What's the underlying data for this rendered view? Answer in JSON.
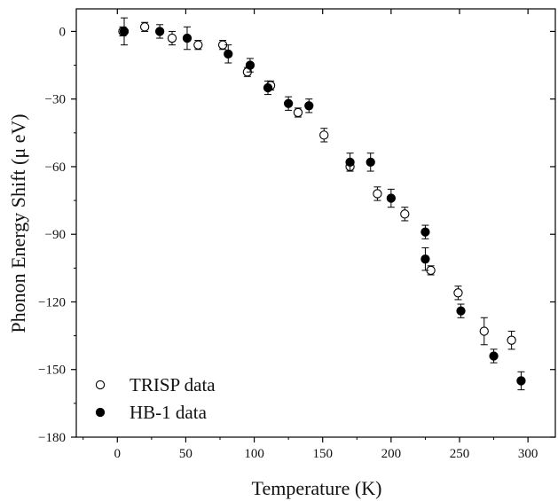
{
  "chart_data": {
    "type": "scatter",
    "title": "",
    "xlabel": "Temperature (K)",
    "ylabel": "Phonon Energy Shift (μ eV)",
    "xlim": [
      -30,
      320
    ],
    "ylim": [
      -180,
      10
    ],
    "xticks": [
      0,
      50,
      100,
      150,
      200,
      250,
      300
    ],
    "yticks": [
      0,
      -30,
      -60,
      -90,
      -120,
      -150,
      -180
    ],
    "grid": false,
    "legend_position": "bottom-left",
    "series": [
      {
        "name": "TRISP data",
        "marker": "open-circle",
        "color": "#000000",
        "points": [
          {
            "x": 4,
            "y": 0,
            "err": 2
          },
          {
            "x": 20,
            "y": 2,
            "err": 2
          },
          {
            "x": 40,
            "y": -3,
            "err": 3
          },
          {
            "x": 59,
            "y": -6,
            "err": 2
          },
          {
            "x": 77,
            "y": -6,
            "err": 2
          },
          {
            "x": 95,
            "y": -18,
            "err": 2
          },
          {
            "x": 112,
            "y": -24,
            "err": 2
          },
          {
            "x": 132,
            "y": -36,
            "err": 2
          },
          {
            "x": 151,
            "y": -46,
            "err": 3
          },
          {
            "x": 170,
            "y": -60,
            "err": 2
          },
          {
            "x": 190,
            "y": -72,
            "err": 3
          },
          {
            "x": 210,
            "y": -81,
            "err": 3
          },
          {
            "x": 229,
            "y": -106,
            "err": 2
          },
          {
            "x": 249,
            "y": -116,
            "err": 3
          },
          {
            "x": 268,
            "y": -133,
            "err": 6
          },
          {
            "x": 288,
            "y": -137,
            "err": 4
          }
        ]
      },
      {
        "name": "HB-1 data",
        "marker": "filled-circle",
        "color": "#000000",
        "points": [
          {
            "x": 5,
            "y": 0,
            "err": 6
          },
          {
            "x": 31,
            "y": 0,
            "err": 3
          },
          {
            "x": 51,
            "y": -3,
            "err": 5
          },
          {
            "x": 81,
            "y": -10,
            "err": 4
          },
          {
            "x": 97,
            "y": -15,
            "err": 3
          },
          {
            "x": 110,
            "y": -25,
            "err": 3
          },
          {
            "x": 125,
            "y": -32,
            "err": 3
          },
          {
            "x": 140,
            "y": -33,
            "err": 3
          },
          {
            "x": 170,
            "y": -58,
            "err": 4
          },
          {
            "x": 185,
            "y": -58,
            "err": 4
          },
          {
            "x": 200,
            "y": -74,
            "err": 4
          },
          {
            "x": 225,
            "y": -89,
            "err": 3
          },
          {
            "x": 225,
            "y": -101,
            "err": 5
          },
          {
            "x": 251,
            "y": -124,
            "err": 3
          },
          {
            "x": 275,
            "y": -144,
            "err": 3
          },
          {
            "x": 295,
            "y": -155,
            "err": 4
          }
        ]
      }
    ]
  }
}
